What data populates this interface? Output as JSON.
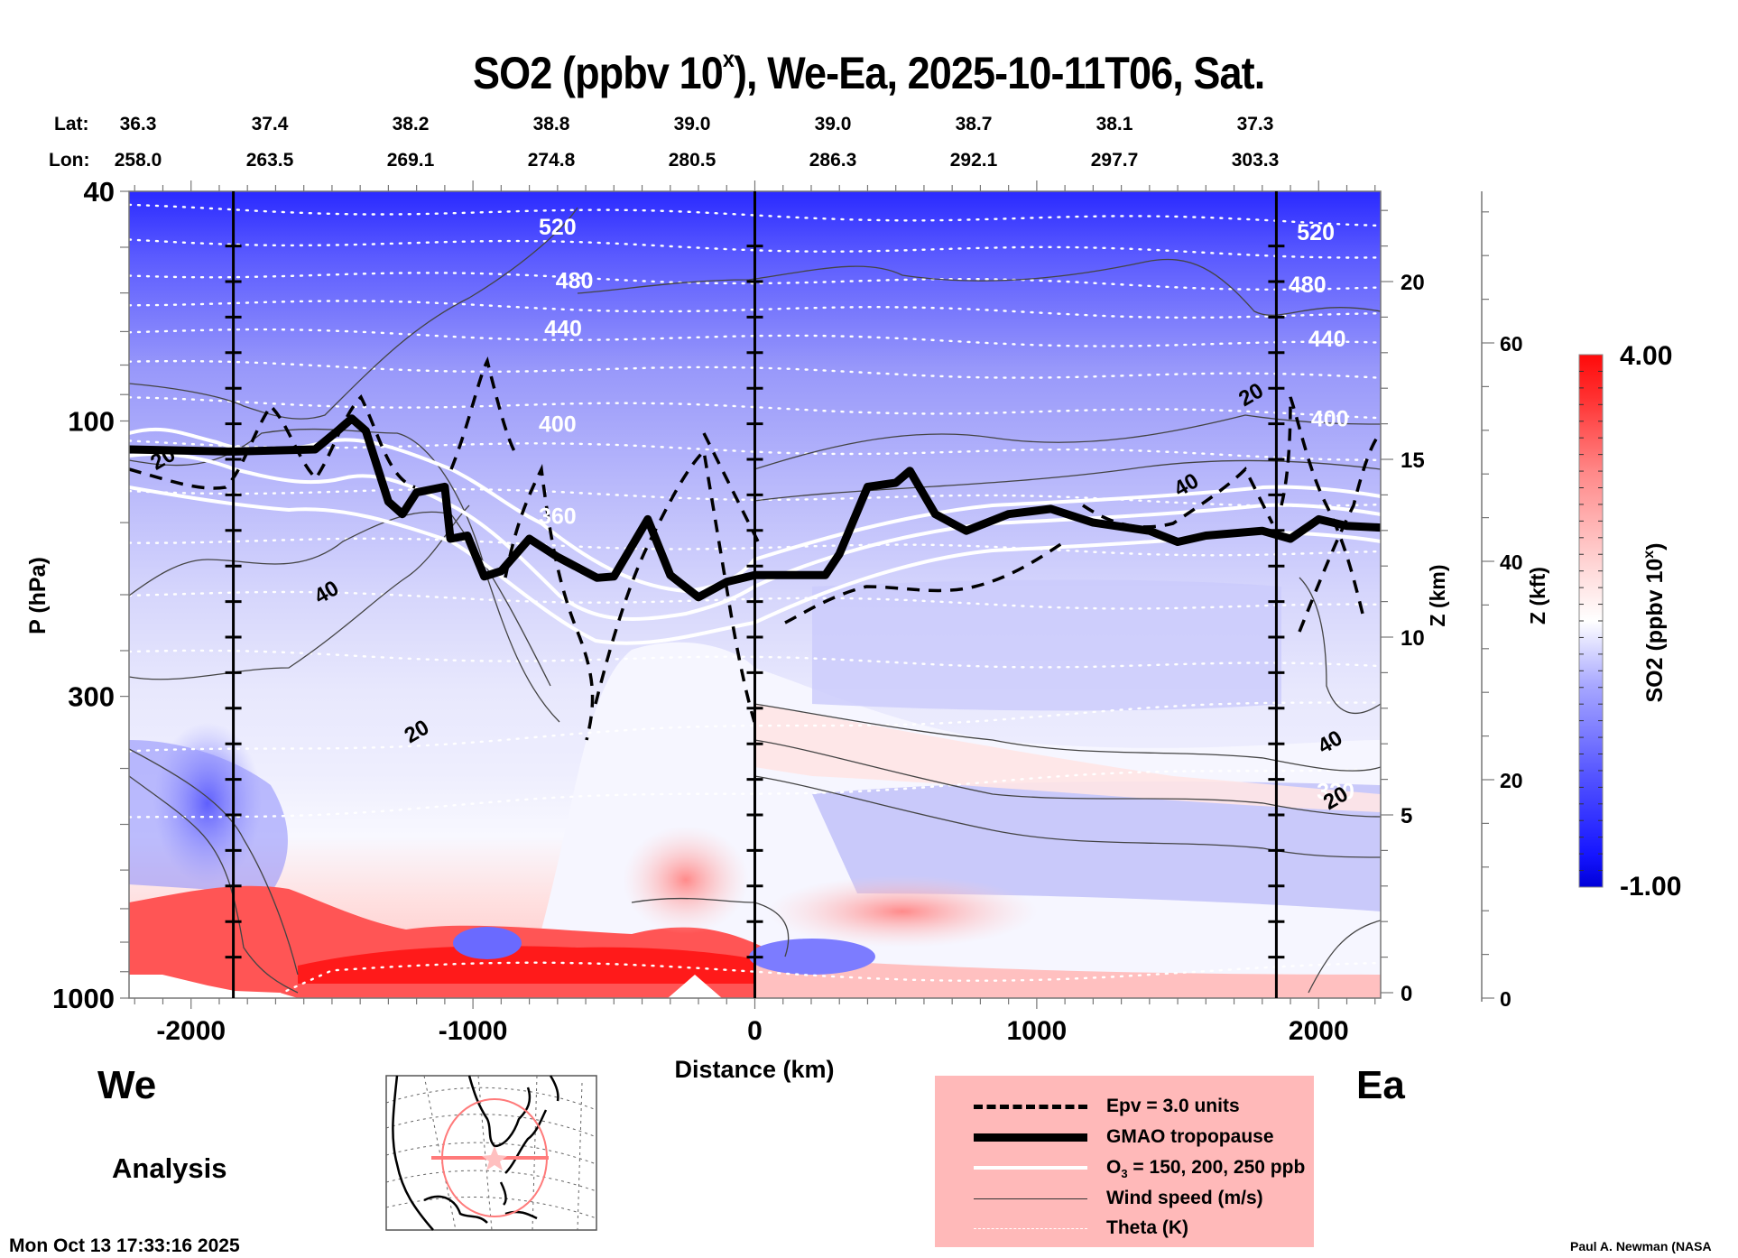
{
  "title": {
    "main": "SO2 (ppbv 10",
    "sup": "x",
    "rest": "), We-Ea, 2025-10-11T06, Sat."
  },
  "latlon": {
    "lat_label": "Lat:",
    "lon_label": "Lon:",
    "lat": [
      "36.3",
      "37.4",
      "38.2",
      "38.8",
      "39.0",
      "39.0",
      "38.7",
      "38.1",
      "37.3"
    ],
    "lon": [
      "258.0",
      "263.5",
      "269.1",
      "274.8",
      "280.5",
      "286.3",
      "292.1",
      "297.7",
      "303.3"
    ]
  },
  "labels": {
    "west": "We",
    "east": "Ea",
    "analysis": "Analysis",
    "timestamp": "Mon Oct 13 17:33:16 2025",
    "credit": "Paul A. Newman (NASA"
  },
  "legend": [
    {
      "style": "dashed",
      "label": "Epv = 3.0 units"
    },
    {
      "style": "thick",
      "label": "GMAO tropopause"
    },
    {
      "style": "white",
      "label": "O",
      "sub": "3",
      "label_rest": " = 150, 200, 250 ppb"
    },
    {
      "style": "thin",
      "label": "Wind speed (m/s)"
    },
    {
      "style": "dotted",
      "label": "Theta (K)"
    }
  ],
  "chart_data": {
    "type": "heatmap",
    "title": "SO2 (ppbv 10^x), We-Ea, 2025-10-11T06, Sat.",
    "xlabel": "Distance (km)",
    "ylabel": "P (hPa)",
    "y2label": "Z (km)",
    "y3label": "Z (kft)",
    "xlim": [
      -2220,
      2220
    ],
    "ylim": [
      1000,
      40
    ],
    "yscale": "log",
    "x_ticks": [
      -2000,
      -1000,
      0,
      1000,
      2000
    ],
    "x_tick_labels": [
      "-2000",
      "-1000",
      "0",
      "1000",
      "2000"
    ],
    "y_ticks": [
      40,
      100,
      300,
      1000
    ],
    "y_tick_labels": [
      "40",
      "100",
      "300",
      "1000"
    ],
    "z_km_ticks": [
      0,
      5,
      10,
      15,
      20
    ],
    "z_km_tick_labels": [
      "0",
      "5",
      "10",
      "15",
      "20"
    ],
    "z_kft_ticks": [
      0,
      20,
      40,
      60
    ],
    "z_kft_tick_labels": [
      "0",
      "20",
      "40",
      "60"
    ],
    "vertical_lines_km": [
      -1850,
      0,
      1850
    ],
    "colorbar": {
      "label": "SO2 (ppbv 10",
      "label_sup": "x",
      "label_rest": ")",
      "min": -1.0,
      "max": 4.0,
      "min_label": "-1.00",
      "max_label": "4.00",
      "colors": [
        "#0000d8",
        "#3a3aff",
        "#8c8cff",
        "#d0d0ff",
        "#ffffff",
        "#ffd0d0",
        "#ff8c8c",
        "#ff3a3a",
        "#ff0000"
      ]
    },
    "theta_levels_K": [
      320,
      360,
      400,
      440,
      480,
      520
    ],
    "theta_labels": [
      {
        "value": "520",
        "x_km": -700,
        "p_hpa": 46
      },
      {
        "value": "480",
        "x_km": -640,
        "p_hpa": 57
      },
      {
        "value": "440",
        "x_km": -680,
        "p_hpa": 69
      },
      {
        "value": "400",
        "x_km": -700,
        "p_hpa": 101
      },
      {
        "value": "360",
        "x_km": -700,
        "p_hpa": 146
      },
      {
        "value": "520",
        "x_km": 1990,
        "p_hpa": 47
      },
      {
        "value": "480",
        "x_km": 1960,
        "p_hpa": 58
      },
      {
        "value": "440",
        "x_km": 2030,
        "p_hpa": 72
      },
      {
        "value": "400",
        "x_km": 2040,
        "p_hpa": 99
      },
      {
        "value": "320",
        "x_km": 2060,
        "p_hpa": 438
      }
    ],
    "wind_labels": [
      {
        "value": "20",
        "x_km": -2100,
        "p_hpa": 116
      },
      {
        "value": "40",
        "x_km": -1520,
        "p_hpa": 198
      },
      {
        "value": "20",
        "x_km": -1200,
        "p_hpa": 345
      },
      {
        "value": "20",
        "x_km": 1760,
        "p_hpa": 90
      },
      {
        "value": "40",
        "x_km": 1530,
        "p_hpa": 129
      },
      {
        "value": "40",
        "x_km": 2040,
        "p_hpa": 360
      },
      {
        "value": "20",
        "x_km": 2060,
        "p_hpa": 450
      }
    ],
    "tropopause_km_hpa": [
      [
        -2220,
        112
      ],
      [
        -1850,
        113
      ],
      [
        -1560,
        112
      ],
      [
        -1480,
        104
      ],
      [
        -1430,
        99
      ],
      [
        -1380,
        104
      ],
      [
        -1300,
        138
      ],
      [
        -1250,
        145
      ],
      [
        -1200,
        133
      ],
      [
        -1100,
        130
      ],
      [
        -1080,
        160
      ],
      [
        -1020,
        158
      ],
      [
        -960,
        186
      ],
      [
        -900,
        182
      ],
      [
        -800,
        160
      ],
      [
        -700,
        172
      ],
      [
        -560,
        187
      ],
      [
        -500,
        186
      ],
      [
        -380,
        148
      ],
      [
        -300,
        185
      ],
      [
        -200,
        202
      ],
      [
        -100,
        190
      ],
      [
        0,
        185
      ],
      [
        250,
        185
      ],
      [
        300,
        170
      ],
      [
        400,
        130
      ],
      [
        500,
        128
      ],
      [
        550,
        122
      ],
      [
        640,
        145
      ],
      [
        750,
        155
      ],
      [
        900,
        145
      ],
      [
        1050,
        142
      ],
      [
        1200,
        150
      ],
      [
        1400,
        155
      ],
      [
        1500,
        162
      ],
      [
        1600,
        158
      ],
      [
        1800,
        155
      ],
      [
        1900,
        160
      ],
      [
        2000,
        148
      ],
      [
        2100,
        152
      ],
      [
        2220,
        153
      ]
    ],
    "surface_so2_high_region": "near-surface red (positive SO2) from -2200 to 400 km below ~850 hPa",
    "legend_position": "bottom-center"
  }
}
